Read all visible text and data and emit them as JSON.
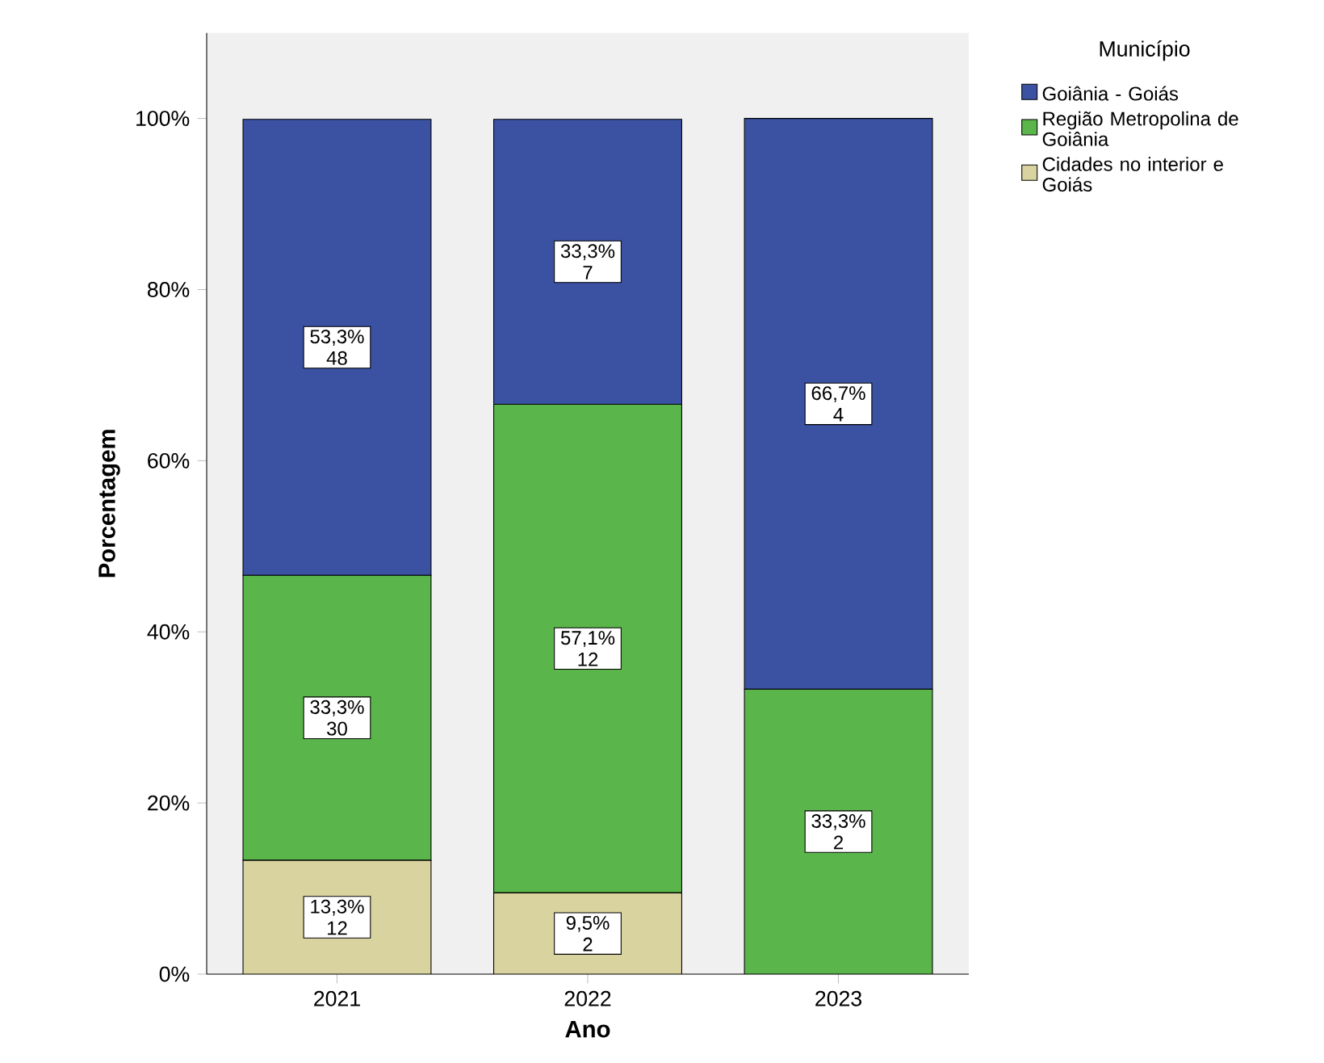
{
  "chart_data": {
    "type": "bar",
    "stacked": true,
    "xlabel": "Ano",
    "ylabel": "Porcentagem",
    "legend_title": "Município",
    "legend": "top right",
    "categories": [
      "2021",
      "2022",
      "2023"
    ],
    "ylim": [
      0,
      110
    ],
    "yticks": [
      {
        "value": 0,
        "label": "0%"
      },
      {
        "value": 20,
        "label": "20%"
      },
      {
        "value": 40,
        "label": "40%"
      },
      {
        "value": 60,
        "label": "60%"
      },
      {
        "value": 80,
        "label": "80%"
      },
      {
        "value": 100,
        "label": "100%"
      }
    ],
    "series": [
      {
        "name": "Cidades no interior e Goiás",
        "color": "#d9d3a0",
        "values": [
          13.3,
          9.5,
          0
        ],
        "value_labels": [
          "13,3% 12",
          "9,5% 2",
          null
        ]
      },
      {
        "name": "Região Metropolina de Goiânia",
        "color": "#5ab54a",
        "values": [
          33.3,
          57.1,
          33.3
        ],
        "value_labels": [
          "33,3% 30",
          "57,1% 12",
          "33,3% 2"
        ]
      },
      {
        "name": "Goiânia - Goiás",
        "color": "#3b52a3",
        "values": [
          53.3,
          33.3,
          66.7
        ],
        "value_labels": [
          "53,3% 48",
          "33,3% 7",
          "66,7% 4"
        ]
      }
    ]
  }
}
